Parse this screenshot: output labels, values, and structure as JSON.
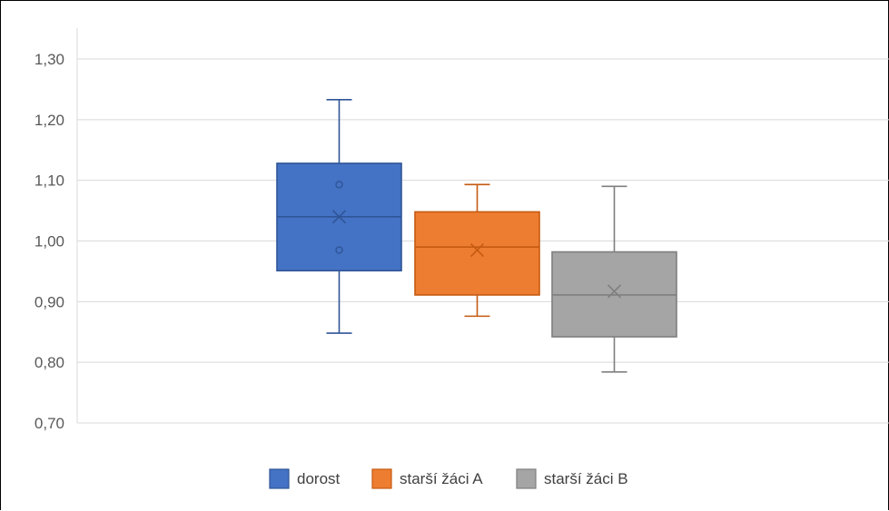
{
  "chart_data": {
    "type": "box",
    "y_ticks": [
      "0,70",
      "0,80",
      "0,90",
      "1,00",
      "1,10",
      "1,20",
      "1,30"
    ],
    "y_tick_values": [
      0.7,
      0.8,
      0.9,
      1.0,
      1.1,
      1.2,
      1.3
    ],
    "ylim": [
      0.7,
      1.3
    ],
    "grid": true,
    "legend_position": "bottom",
    "series": [
      {
        "name": "dorost",
        "color": "#4472C4",
        "edge": "#2F5597",
        "min": 0.848,
        "q1": 0.951,
        "median": 1.04,
        "q3": 1.128,
        "max": 1.233,
        "mean": 1.04,
        "inner_points": [
          1.093,
          0.985
        ]
      },
      {
        "name": "starší žáci A",
        "color": "#ED7D31",
        "edge": "#C55A11",
        "min": 0.876,
        "q1": 0.911,
        "median": 0.99,
        "q3": 1.048,
        "max": 1.093,
        "mean": 0.985,
        "inner_points": []
      },
      {
        "name": "starší žáci B",
        "color": "#A5A5A5",
        "edge": "#7F7F7F",
        "min": 0.784,
        "q1": 0.842,
        "median": 0.911,
        "q3": 0.982,
        "max": 1.09,
        "mean": 0.917,
        "inner_points": []
      }
    ]
  }
}
